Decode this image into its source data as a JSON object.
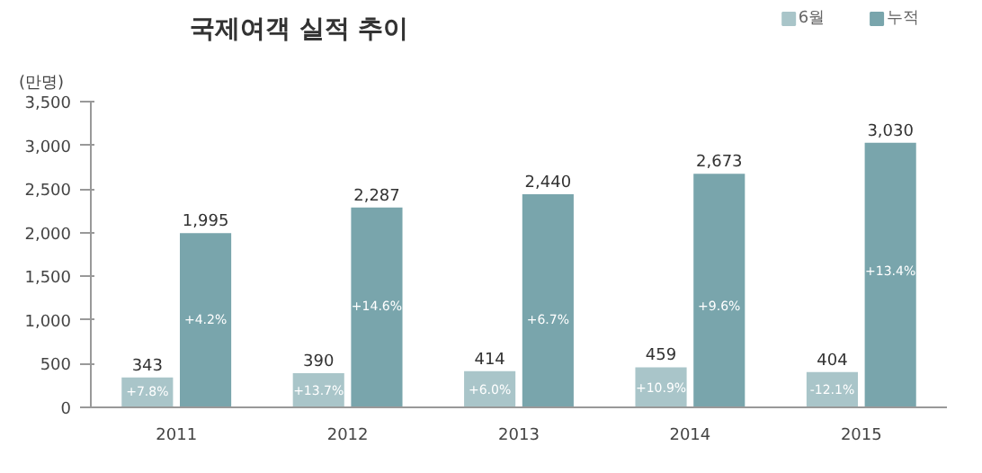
{
  "chart_data": {
    "type": "bar",
    "title": "국제여객 실적 추이",
    "ylabel": "(만명)",
    "categories": [
      "2011",
      "2012",
      "2013",
      "2014",
      "2015"
    ],
    "series": [
      {
        "name": "6월",
        "color": "#a9c5c9",
        "values": [
          343,
          390,
          414,
          459,
          404
        ],
        "value_labels": [
          "343",
          "390",
          "414",
          "459",
          "404"
        ]
      },
      {
        "name": "누적",
        "color": "#79a5ac",
        "values": [
          1995,
          2287,
          2440,
          2673,
          3030
        ],
        "value_labels": [
          "1,995",
          "2,287",
          "2,440",
          "2,673",
          "3,030"
        ]
      }
    ],
    "ylim": [
      0,
      3500
    ],
    "yticks": [
      {
        "value": 0,
        "label": "0"
      },
      {
        "value": 500,
        "label": "500"
      },
      {
        "value": 1000,
        "label": "1,000"
      },
      {
        "value": 1500,
        "label": "1,500"
      },
      {
        "value": 2000,
        "label": "2,000"
      },
      {
        "value": 2500,
        "label": "2,500"
      },
      {
        "value": 3000,
        "label": "3,000"
      },
      {
        "value": 3500,
        "label": "3,500"
      }
    ],
    "legend": "top right",
    "grid": false,
    "annotations": [
      {
        "text": "+7.8%",
        "x": "2011",
        "y": 170
      },
      {
        "text": "+13.7%",
        "x": "2012",
        "y": 190
      },
      {
        "text": "+6.0%",
        "x": "2013",
        "y": 200
      },
      {
        "text": "+10.9%",
        "x": "2014",
        "y": 220
      },
      {
        "text": "-12.1%",
        "x": "2015",
        "y": 200
      },
      {
        "text": "+4.2%",
        "x": "2011",
        "y": 1000
      },
      {
        "text": "+14.6%",
        "x": "2012",
        "y": 1150
      },
      {
        "text": "+6.7%",
        "x": "2013",
        "y": 1000
      },
      {
        "text": "+9.6%",
        "x": "2014",
        "y": 1150
      },
      {
        "text": "+13.4%",
        "x": "2015",
        "y": 1550
      }
    ]
  }
}
